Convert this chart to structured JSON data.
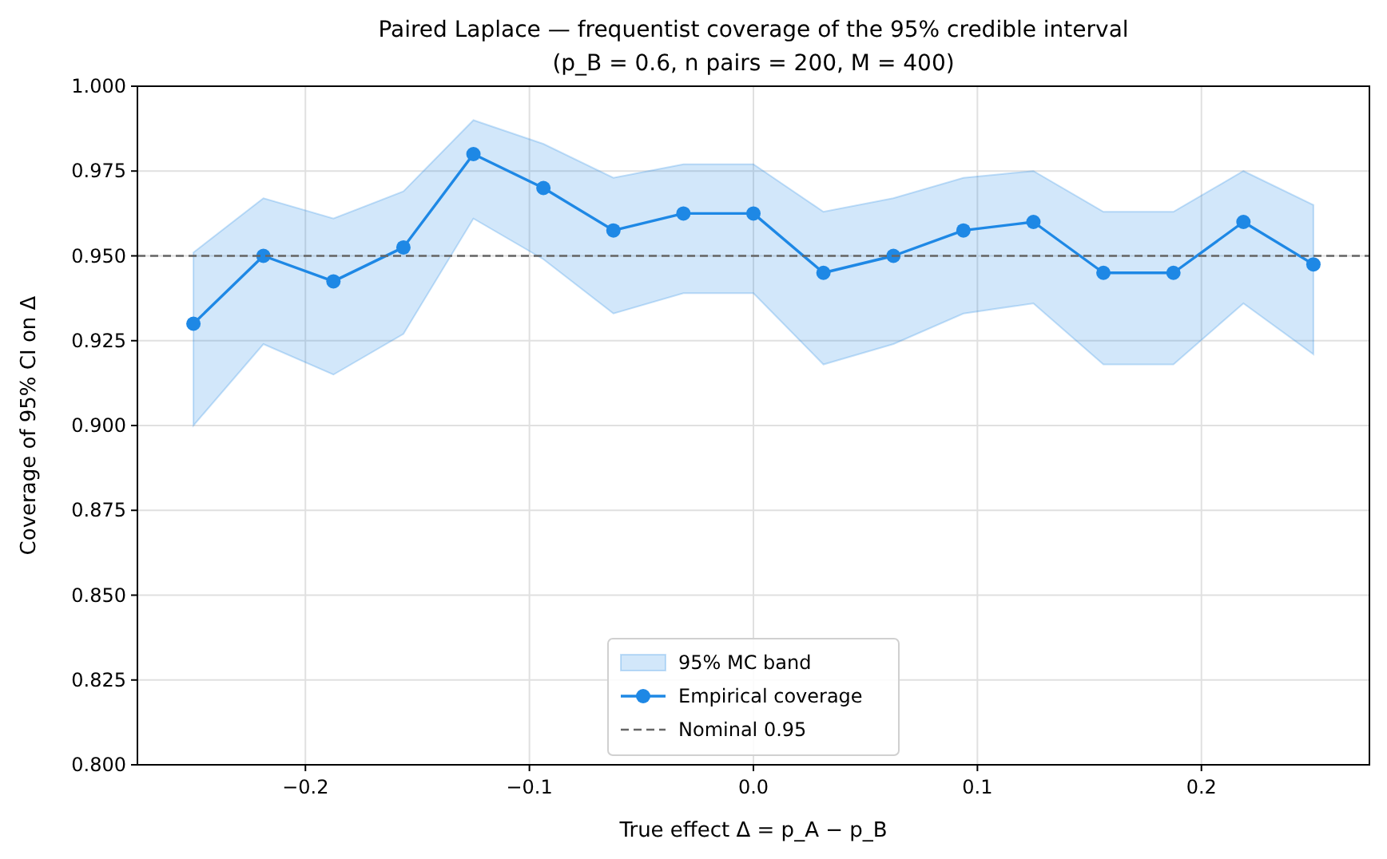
{
  "chart_data": {
    "type": "line",
    "title": "Paired Laplace — frequentist coverage of the 95% credible interval",
    "subtitle": "(p_B = 0.6, n pairs = 200, M = 400)",
    "xlabel": "True effect  Δ = p_A − p_B",
    "ylabel": "Coverage of 95% CI on Δ",
    "x": [
      -0.25,
      -0.21875,
      -0.1875,
      -0.15625,
      -0.125,
      -0.09375,
      -0.0625,
      -0.03125,
      0,
      0.03125,
      0.0625,
      0.09375,
      0.125,
      0.15625,
      0.1875,
      0.21875,
      0.25
    ],
    "series": [
      {
        "name": "Empirical coverage",
        "color": "#1e88e5",
        "marker": "circle",
        "values": [
          0.93,
          0.95,
          0.9425,
          0.9525,
          0.98,
          0.97,
          0.9575,
          0.9625,
          0.9625,
          0.945,
          0.95,
          0.9575,
          0.96,
          0.945,
          0.945,
          0.96,
          0.9475
        ],
        "lower": [
          0.9,
          0.924,
          0.915,
          0.927,
          0.961,
          0.949,
          0.933,
          0.939,
          0.939,
          0.918,
          0.924,
          0.933,
          0.936,
          0.918,
          0.918,
          0.936,
          0.921
        ],
        "upper": [
          0.951,
          0.967,
          0.961,
          0.969,
          0.99,
          0.983,
          0.973,
          0.977,
          0.977,
          0.963,
          0.967,
          0.973,
          0.975,
          0.963,
          0.963,
          0.975,
          0.965
        ]
      }
    ],
    "annotations": [
      "95% MC band"
    ],
    "ref_lines": [
      {
        "axis": "y",
        "value": 0.95,
        "label": "Nominal 0.95",
        "color": "#666666",
        "line_style": "dashed"
      }
    ],
    "xlim": [
      -0.275,
      0.275
    ],
    "xticks": [
      {
        "value": -0.2,
        "label": "−0.2"
      },
      {
        "value": -0.1,
        "label": "−0.1"
      },
      {
        "value": 0,
        "label": "0.0"
      },
      {
        "value": 0.1,
        "label": "0.1"
      },
      {
        "value": 0.2,
        "label": "0.2"
      }
    ],
    "ylim": [
      0.8,
      1.0
    ],
    "yticks": [
      {
        "value": 0.8,
        "label": "0.800"
      },
      {
        "value": 0.825,
        "label": "0.825"
      },
      {
        "value": 0.85,
        "label": "0.850"
      },
      {
        "value": 0.875,
        "label": "0.875"
      },
      {
        "value": 0.9,
        "label": "0.900"
      },
      {
        "value": 0.925,
        "label": "0.925"
      },
      {
        "value": 0.95,
        "label": "0.950"
      },
      {
        "value": 0.975,
        "label": "0.975"
      },
      {
        "value": 1.0,
        "label": "1.000"
      }
    ],
    "grid": true,
    "legend": "bottom"
  }
}
